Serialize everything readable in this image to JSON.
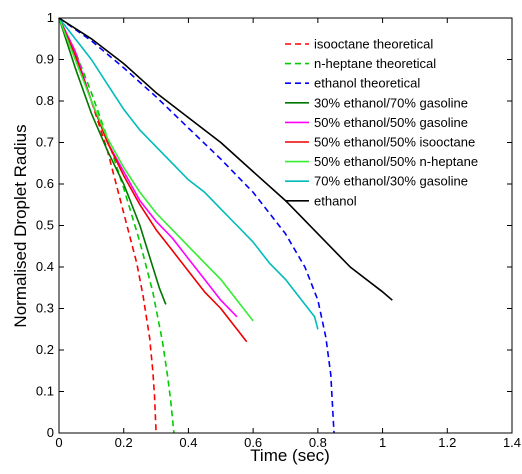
{
  "chart_data": {
    "type": "line",
    "title": "",
    "xlabel": "Time (sec)",
    "ylabel": "Normalised Droplet Radius",
    "xlim": [
      0,
      1.4
    ],
    "ylim": [
      0,
      1
    ],
    "xticks": [
      0,
      0.2,
      0.4,
      0.6,
      0.8,
      1,
      1.2,
      1.4
    ],
    "xtick_labels": [
      "0",
      "0.2",
      "0.4",
      "0.6",
      "0.8",
      "1",
      "1.2",
      "1.4"
    ],
    "yticks": [
      0,
      0.1,
      0.2,
      0.3,
      0.4,
      0.5,
      0.6,
      0.7,
      0.8,
      0.9,
      1
    ],
    "ytick_labels": [
      "0",
      "0.1",
      "0.2",
      "0.3",
      "0.4",
      "0.5",
      "0.6",
      "0.7",
      "0.8",
      "0.9",
      "1"
    ],
    "grid": false,
    "legend_position": "top-right",
    "series": [
      {
        "name": "isooctane theoretical",
        "color": "#ff0000",
        "dash": "dashed",
        "x": [
          0,
          0.05,
          0.1,
          0.15,
          0.2,
          0.24,
          0.26,
          0.28,
          0.29,
          0.295,
          0.3
        ],
        "y": [
          1,
          0.91,
          0.8,
          0.68,
          0.53,
          0.41,
          0.33,
          0.23,
          0.15,
          0.09,
          0
        ]
      },
      {
        "name": "n-heptane theoretical",
        "color": "#00cc00",
        "dash": "dashed",
        "x": [
          0,
          0.05,
          0.1,
          0.15,
          0.2,
          0.25,
          0.29,
          0.32,
          0.335,
          0.345,
          0.355
        ],
        "y": [
          1,
          0.92,
          0.82,
          0.71,
          0.59,
          0.46,
          0.34,
          0.22,
          0.14,
          0.08,
          0
        ]
      },
      {
        "name": "ethanol theoretical",
        "color": "#0000ff",
        "dash": "dashed",
        "x": [
          0,
          0.1,
          0.2,
          0.3,
          0.4,
          0.5,
          0.6,
          0.7,
          0.76,
          0.8,
          0.825,
          0.84,
          0.85
        ],
        "y": [
          1,
          0.945,
          0.88,
          0.81,
          0.735,
          0.66,
          0.58,
          0.48,
          0.4,
          0.32,
          0.23,
          0.14,
          0
        ]
      },
      {
        "name": "30% ethanol/70% gasoline",
        "color": "#007700",
        "dash": "solid",
        "x": [
          0,
          0.05,
          0.1,
          0.15,
          0.2,
          0.25,
          0.29,
          0.31,
          0.33
        ],
        "y": [
          1,
          0.88,
          0.77,
          0.68,
          0.6,
          0.5,
          0.4,
          0.35,
          0.31
        ]
      },
      {
        "name": "50% ethanol/50% gasoline",
        "color": "#ff00ff",
        "dash": "solid",
        "x": [
          0,
          0.05,
          0.1,
          0.15,
          0.2,
          0.25,
          0.3,
          0.35,
          0.4,
          0.45,
          0.5,
          0.55
        ],
        "y": [
          1,
          0.92,
          0.8,
          0.7,
          0.63,
          0.56,
          0.51,
          0.47,
          0.42,
          0.37,
          0.32,
          0.28
        ]
      },
      {
        "name": "50% ethanol/50% isooctane",
        "color": "#ee0000",
        "dash": "solid",
        "x": [
          0,
          0.05,
          0.1,
          0.15,
          0.2,
          0.25,
          0.3,
          0.35,
          0.4,
          0.45,
          0.5,
          0.55,
          0.58
        ],
        "y": [
          1,
          0.91,
          0.8,
          0.7,
          0.62,
          0.55,
          0.49,
          0.44,
          0.39,
          0.34,
          0.3,
          0.25,
          0.22
        ]
      },
      {
        "name": "50% ethanol/50% n-heptane",
        "color": "#33ee33",
        "dash": "solid",
        "x": [
          0,
          0.05,
          0.1,
          0.15,
          0.2,
          0.25,
          0.3,
          0.35,
          0.4,
          0.45,
          0.5,
          0.55,
          0.6
        ],
        "y": [
          1,
          0.9,
          0.8,
          0.71,
          0.64,
          0.58,
          0.53,
          0.49,
          0.45,
          0.41,
          0.37,
          0.32,
          0.27
        ]
      },
      {
        "name": "70% ethanol/30% gasoline",
        "color": "#00bbbb",
        "dash": "solid",
        "x": [
          0,
          0.05,
          0.1,
          0.15,
          0.2,
          0.25,
          0.3,
          0.35,
          0.4,
          0.45,
          0.5,
          0.55,
          0.6,
          0.65,
          0.7,
          0.75,
          0.79,
          0.8
        ],
        "y": [
          1,
          0.95,
          0.9,
          0.84,
          0.78,
          0.73,
          0.69,
          0.65,
          0.61,
          0.58,
          0.54,
          0.5,
          0.46,
          0.41,
          0.37,
          0.32,
          0.28,
          0.25
        ]
      },
      {
        "name": "ethanol",
        "color": "#000000",
        "dash": "solid",
        "x": [
          0,
          0.1,
          0.2,
          0.3,
          0.4,
          0.5,
          0.6,
          0.7,
          0.8,
          0.9,
          1.0,
          1.03
        ],
        "y": [
          1,
          0.95,
          0.89,
          0.82,
          0.76,
          0.7,
          0.63,
          0.56,
          0.48,
          0.4,
          0.34,
          0.32
        ]
      }
    ]
  }
}
